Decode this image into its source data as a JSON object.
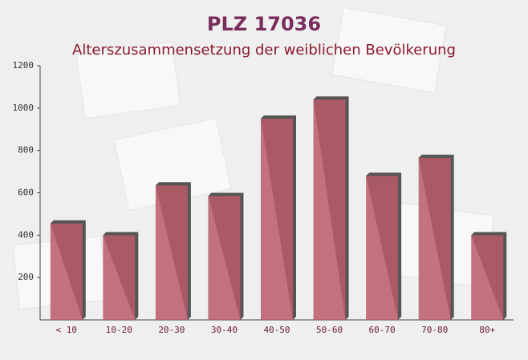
{
  "chart_data": {
    "type": "bar",
    "title": "PLZ 17036",
    "subtitle": "Alterszusammensetzung der weiblichen Bevölkerung",
    "categories": [
      "< 10",
      "10-20",
      "20-30",
      "30-40",
      "40-50",
      "50-60",
      "60-70",
      "70-80",
      "80+"
    ],
    "values": [
      455,
      400,
      635,
      585,
      950,
      1040,
      680,
      765,
      400
    ],
    "color": "#b85c68",
    "ylim": [
      0,
      1200
    ],
    "yticks": [
      200,
      400,
      600,
      800,
      1000,
      1200
    ],
    "grid": false
  }
}
